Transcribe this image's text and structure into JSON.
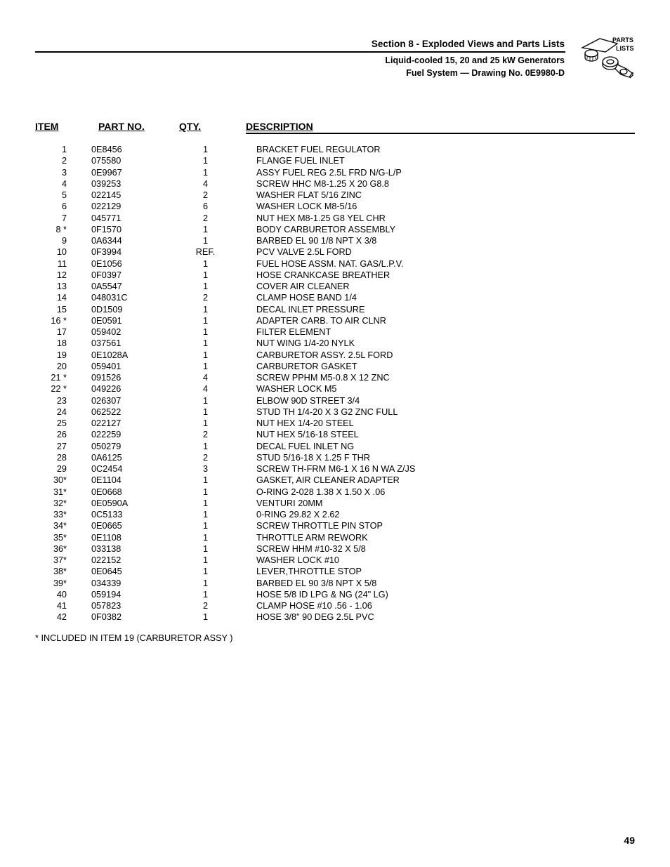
{
  "header": {
    "section_title": "Section 8 - Exploded Views and Parts Lists",
    "subtitle1": "Liquid-cooled 15, 20 and 25 kW Generators",
    "subtitle2": "Fuel System — Drawing No. 0E9980-D",
    "logo_text1": "PARTS",
    "logo_text2": "LISTS"
  },
  "columns": {
    "item": "ITEM",
    "part": "PART NO.",
    "qty": "QTY.",
    "desc": "DESCRIPTION"
  },
  "rows": [
    {
      "item": "1",
      "part": "0E8456",
      "qty": "1",
      "desc": "BRACKET FUEL REGULATOR"
    },
    {
      "item": "2",
      "part": "075580",
      "qty": "1",
      "desc": "FLANGE FUEL INLET"
    },
    {
      "item": "3",
      "part": "0E9967",
      "qty": "1",
      "desc": "ASSY FUEL REG 2.5L FRD N/G-L/P"
    },
    {
      "item": "4",
      "part": "039253",
      "qty": "4",
      "desc": "SCREW HHC M8-1.25 X 20 G8.8"
    },
    {
      "item": "5",
      "part": "022145",
      "qty": "2",
      "desc": "WASHER FLAT 5/16 ZINC"
    },
    {
      "item": "6",
      "part": "022129",
      "qty": "6",
      "desc": "WASHER LOCK M8-5/16"
    },
    {
      "item": "7",
      "part": "045771",
      "qty": "2",
      "desc": "NUT HEX M8-1.25 G8 YEL CHR"
    },
    {
      "item": "8 *",
      "part": "0F1570",
      "qty": "1",
      "desc": "BODY CARBURETOR ASSEMBLY"
    },
    {
      "item": "9",
      "part": "0A6344",
      "qty": "1",
      "desc": "BARBED EL 90 1/8 NPT X 3/8"
    },
    {
      "item": "10",
      "part": "0F3994",
      "qty": "REF.",
      "desc": "PCV VALVE 2.5L FORD"
    },
    {
      "item": "11",
      "part": "0E1056",
      "qty": "1",
      "desc": "FUEL HOSE ASSM. NAT. GAS/L.P.V."
    },
    {
      "item": "12",
      "part": "0F0397",
      "qty": "1",
      "desc": "HOSE CRANKCASE BREATHER"
    },
    {
      "item": "13",
      "part": "0A5547",
      "qty": "1",
      "desc": "COVER AIR CLEANER"
    },
    {
      "item": "14",
      "part": "048031C",
      "qty": "2",
      "desc": "CLAMP HOSE BAND 1/4"
    },
    {
      "item": "15",
      "part": "0D1509",
      "qty": "1",
      "desc": "DECAL INLET PRESSURE"
    },
    {
      "item": "16 *",
      "part": "0E0591",
      "qty": "1",
      "desc": "ADAPTER CARB. TO AIR CLNR"
    },
    {
      "item": "17",
      "part": "059402",
      "qty": "1",
      "desc": "FILTER ELEMENT"
    },
    {
      "item": "18",
      "part": "037561",
      "qty": "1",
      "desc": "NUT WING 1/4-20 NYLK"
    },
    {
      "item": "19",
      "part": "0E1028A",
      "qty": "1",
      "desc": "CARBURETOR ASSY. 2.5L FORD"
    },
    {
      "item": "20",
      "part": "059401",
      "qty": "1",
      "desc": "CARBURETOR GASKET"
    },
    {
      "item": "21 *",
      "part": "091526",
      "qty": "4",
      "desc": "SCREW PPHM M5-0.8 X 12 ZNC"
    },
    {
      "item": "22 *",
      "part": "049226",
      "qty": "4",
      "desc": "WASHER LOCK M5"
    },
    {
      "item": "23",
      "part": "026307",
      "qty": "1",
      "desc": "ELBOW 90D STREET 3/4"
    },
    {
      "item": "24",
      "part": "062522",
      "qty": "1",
      "desc": "STUD TH 1/4-20 X 3 G2 ZNC FULL"
    },
    {
      "item": "25",
      "part": "022127",
      "qty": "1",
      "desc": "NUT HEX 1/4-20 STEEL"
    },
    {
      "item": "26",
      "part": "022259",
      "qty": "2",
      "desc": "NUT HEX 5/16-18 STEEL"
    },
    {
      "item": "27",
      "part": "050279",
      "qty": "1",
      "desc": "DECAL FUEL INLET NG"
    },
    {
      "item": "28",
      "part": "0A6125",
      "qty": "2",
      "desc": "STUD 5/16-18 X 1.25 F THR"
    },
    {
      "item": "29",
      "part": "0C2454",
      "qty": "3",
      "desc": "SCREW TH-FRM M6-1 X 16 N WA Z/JS"
    },
    {
      "item": "30*",
      "part": "0E1104",
      "qty": "1",
      "desc": "GASKET, AIR CLEANER ADAPTER"
    },
    {
      "item": "31*",
      "part": "0E0668",
      "qty": "1",
      "desc": "O-RING 2-028 1.38 X 1.50 X .06"
    },
    {
      "item": "32*",
      "part": "0E0590A",
      "qty": "1",
      "desc": "VENTURI 20MM"
    },
    {
      "item": "33*",
      "part": "0C5133",
      "qty": "1",
      "desc": "0-RING 29.82 X 2.62"
    },
    {
      "item": "34*",
      "part": "0E0665",
      "qty": "1",
      "desc": "SCREW THROTTLE PIN STOP"
    },
    {
      "item": "35*",
      "part": "0E1108",
      "qty": "1",
      "desc": "THROTTLE ARM REWORK"
    },
    {
      "item": "36*",
      "part": "033138",
      "qty": "1",
      "desc": "SCREW HHM #10-32 X 5/8"
    },
    {
      "item": "37*",
      "part": "022152",
      "qty": "1",
      "desc": "WASHER LOCK #10"
    },
    {
      "item": "38*",
      "part": "0E0645",
      "qty": "1",
      "desc": "LEVER,THROTTLE STOP"
    },
    {
      "item": "39*",
      "part": "034339",
      "qty": "1",
      "desc": "BARBED EL 90 3/8 NPT X 5/8"
    },
    {
      "item": "40",
      "part": "059194",
      "qty": "1",
      "desc": "HOSE 5/8 ID LPG & NG (24\" LG)"
    },
    {
      "item": "41",
      "part": "057823",
      "qty": "2",
      "desc": "CLAMP HOSE #10 .56 - 1.06"
    },
    {
      "item": "42",
      "part": "0F0382",
      "qty": "1",
      "desc": "HOSE 3/8\" 90 DEG 2.5L PVC"
    }
  ],
  "footnote": "* INCLUDED IN ITEM 19 (CARBURETOR ASSY )",
  "page_number": "49"
}
